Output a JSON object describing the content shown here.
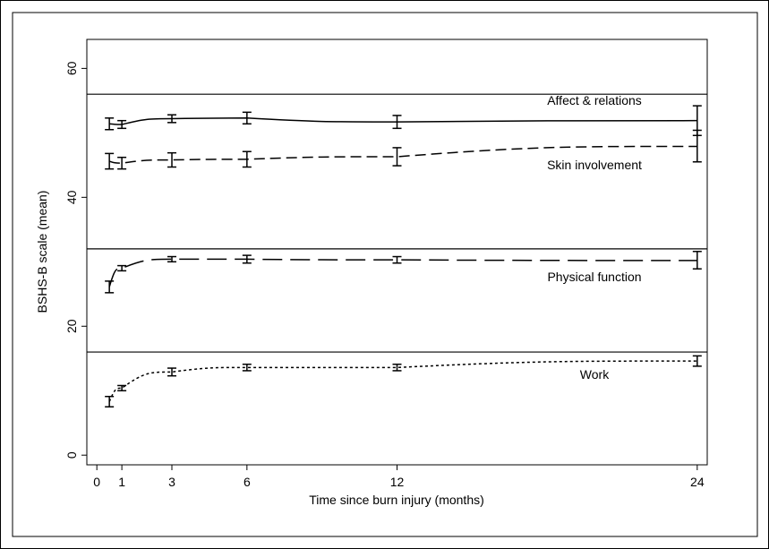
{
  "chart_data": {
    "type": "line",
    "title": "",
    "xlabel": "Time since burn injury (months)",
    "ylabel": "BSHS-B scale (mean)",
    "xlim": [
      -0.4,
      24.4
    ],
    "ylim": [
      -1.5,
      64.5
    ],
    "x_ticks": [
      0,
      1,
      3,
      6,
      12,
      24
    ],
    "y_ticks": [
      0,
      20,
      40,
      60
    ],
    "reference_lines": [
      16,
      32,
      56
    ],
    "grid": false,
    "legend": "none",
    "series": [
      {
        "name": "Affect & relations",
        "style": "solid",
        "x": [
          0.5,
          1,
          3,
          6,
          12,
          24
        ],
        "y": [
          51.4,
          51.3,
          52.2,
          52.3,
          51.7,
          51.9
        ],
        "ci_low": [
          50.5,
          50.7,
          51.6,
          51.4,
          50.7,
          49.6
        ],
        "ci_high": [
          52.3,
          51.9,
          52.8,
          53.2,
          52.7,
          54.2
        ]
      },
      {
        "name": "Skin involvement",
        "style": "dashed",
        "x": [
          0.5,
          1,
          3,
          6,
          12,
          24
        ],
        "y": [
          45.6,
          45.3,
          45.8,
          45.9,
          46.3,
          47.9
        ],
        "ci_low": [
          44.4,
          44.4,
          44.7,
          44.7,
          44.9,
          45.5
        ],
        "ci_high": [
          46.8,
          46.2,
          46.9,
          47.1,
          47.7,
          50.4
        ]
      },
      {
        "name": "Physical function",
        "style": "longdash",
        "x": [
          0.5,
          1,
          3,
          6,
          12,
          24
        ],
        "y": [
          26.1,
          29.0,
          30.4,
          30.4,
          30.3,
          30.2
        ],
        "ci_low": [
          25.2,
          28.6,
          30.0,
          29.8,
          29.8,
          28.9
        ],
        "ci_high": [
          27.0,
          29.4,
          30.8,
          31.0,
          30.8,
          31.6
        ]
      },
      {
        "name": "Work",
        "style": "dotted",
        "x": [
          0.5,
          1,
          3,
          6,
          12,
          24
        ],
        "y": [
          8.3,
          10.4,
          12.9,
          13.6,
          13.6,
          14.6
        ],
        "ci_low": [
          7.5,
          10.0,
          12.3,
          13.1,
          13.1,
          13.8
        ],
        "ci_high": [
          9.1,
          10.8,
          13.5,
          14.1,
          14.1,
          15.4
        ]
      }
    ]
  }
}
